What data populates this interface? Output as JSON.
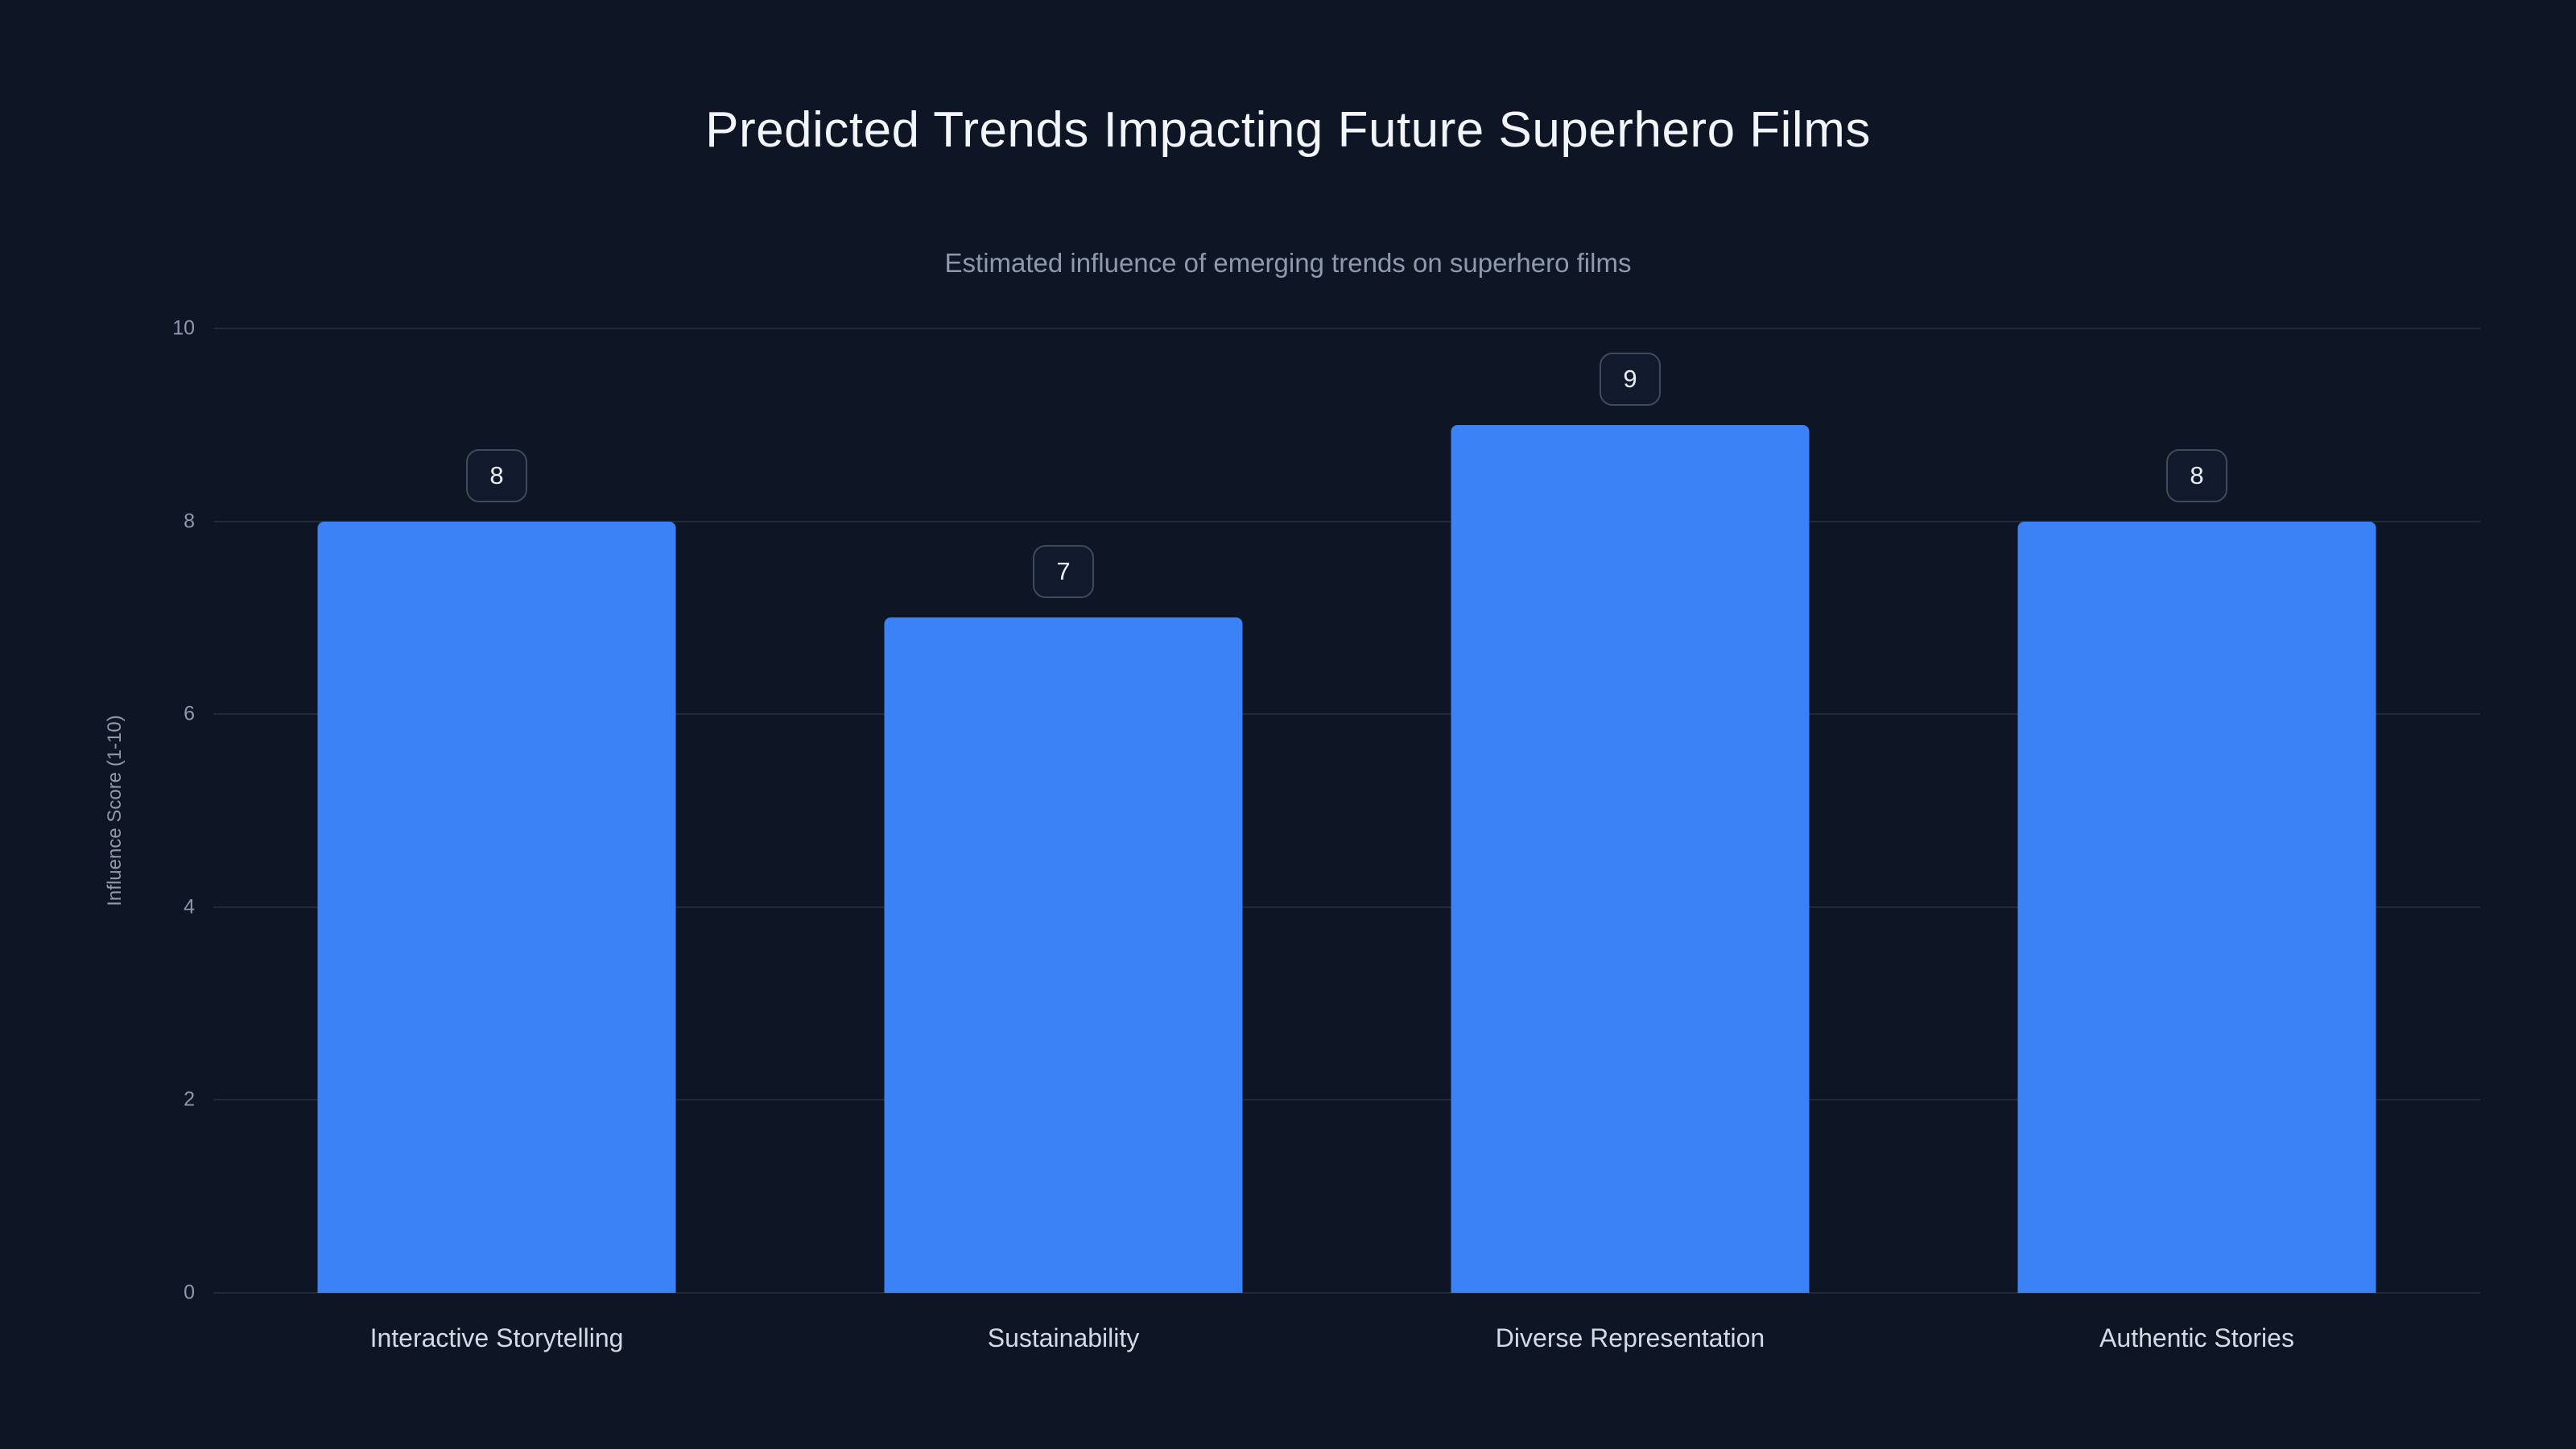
{
  "chart_data": {
    "type": "bar",
    "title": "Predicted Trends Impacting Future Superhero Films",
    "subtitle": "Estimated influence of emerging trends on superhero films",
    "categories": [
      "Interactive Storytelling",
      "Sustainability",
      "Diverse Representation",
      "Authentic Stories"
    ],
    "values": [
      8,
      7,
      9,
      8
    ],
    "xlabel": "",
    "ylabel": "Influence Score (1-10)",
    "ylim": [
      0,
      10
    ],
    "yticks": [
      0,
      2,
      4,
      6,
      8,
      10
    ],
    "grid": true,
    "legend": false,
    "bar_color": "#3b82f6",
    "background_color": "#0e1626",
    "title_color": "#f2f5f9",
    "subtitle_color": "#8e99ab",
    "axis_text_color": "#8e99ab",
    "category_text_color": "#d3dae3"
  }
}
